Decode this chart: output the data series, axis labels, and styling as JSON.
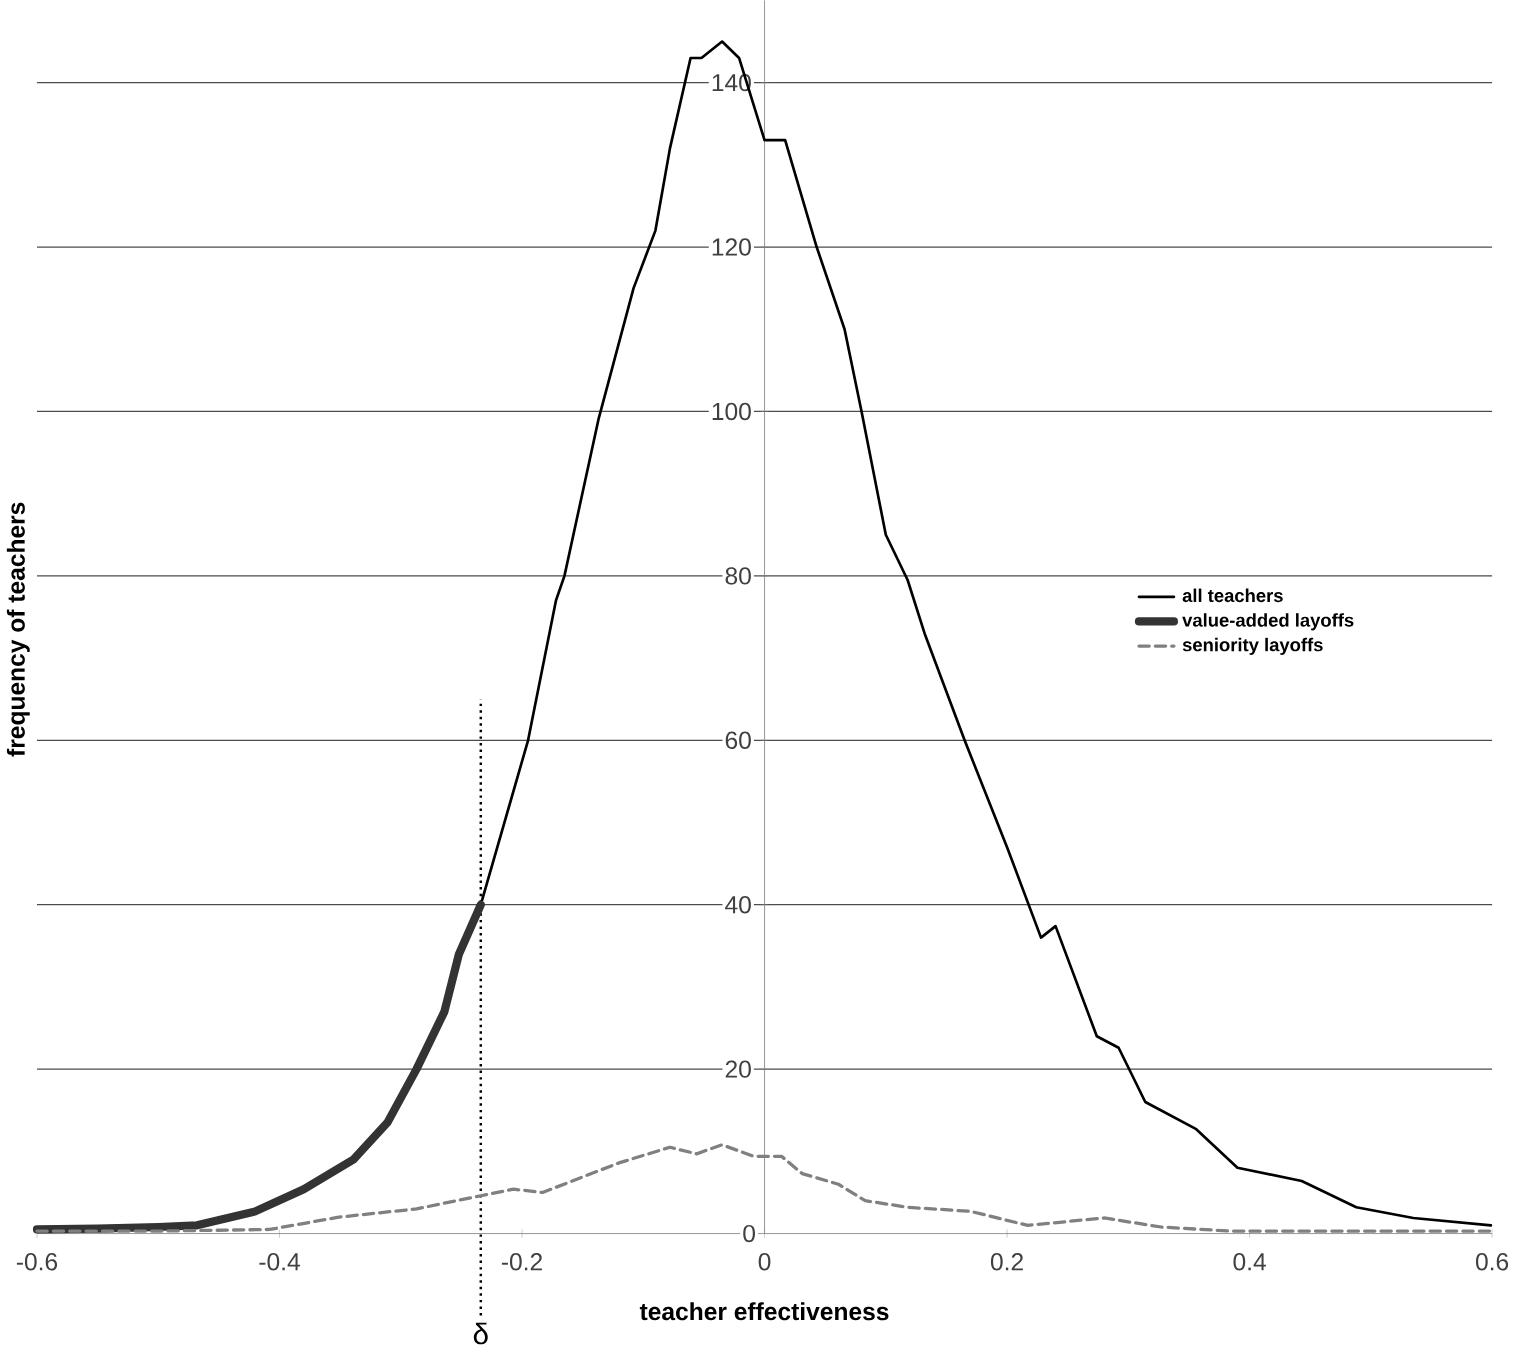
{
  "chart_data": {
    "type": "line",
    "xlabel": "teacher effectiveness",
    "ylabel": "frequency of teachers",
    "xlim": [
      -0.6,
      0.6
    ],
    "ylim": [
      0,
      150
    ],
    "xticks": [
      -0.6,
      -0.4,
      -0.2,
      0,
      0.2,
      0.4,
      0.6
    ],
    "yticks": [
      0,
      20,
      40,
      60,
      80,
      100,
      120,
      140
    ],
    "grid": "y",
    "legend": "right",
    "ref_lines": [
      {
        "axis": "x",
        "value": -0.234,
        "label": "δ",
        "line_style": "dotted",
        "color": "#000000"
      }
    ],
    "series": [
      {
        "name": "all teachers",
        "color": "#000000",
        "line_style": "solid",
        "x": [
          -0.6,
          -0.55,
          -0.5,
          -0.468,
          -0.42,
          -0.38,
          -0.339,
          -0.311,
          -0.287,
          -0.264,
          -0.252,
          -0.234,
          -0.195,
          -0.172,
          -0.165,
          -0.137,
          -0.108,
          -0.09,
          -0.078,
          -0.061,
          -0.052,
          -0.035,
          -0.021,
          0,
          0.017,
          0.043,
          0.066,
          0.08,
          0.1,
          0.118,
          0.132,
          0.165,
          0.2,
          0.228,
          0.24,
          0.274,
          0.292,
          0.314,
          0.356,
          0.39,
          0.443,
          0.488,
          0.535,
          0.599
        ],
        "values": [
          0.5,
          0.6,
          0.8,
          1,
          2.7,
          5.4,
          9,
          13.5,
          20,
          27,
          34,
          40,
          60,
          77,
          80,
          99,
          115,
          122,
          132,
          143,
          143,
          145,
          143,
          133,
          133,
          120,
          110,
          100,
          85,
          79.5,
          73,
          60,
          47,
          36,
          37.4,
          24,
          22.6,
          16,
          12.7,
          8,
          6.4,
          3.2,
          1.9,
          1
        ]
      },
      {
        "name": "value-added layoffs",
        "color": "#333333",
        "line_style": "solid",
        "x": [
          -0.6,
          -0.55,
          -0.5,
          -0.468,
          -0.42,
          -0.38,
          -0.339,
          -0.311,
          -0.287,
          -0.264,
          -0.252,
          -0.234
        ],
        "values": [
          0.5,
          0.6,
          0.8,
          1,
          2.7,
          5.4,
          9,
          13.5,
          20,
          27,
          34,
          40
        ]
      },
      {
        "name": "seniority layoffs",
        "color": "#808080",
        "line_style": "dashed",
        "x": [
          -0.6,
          -0.5,
          -0.408,
          -0.351,
          -0.287,
          -0.234,
          -0.207,
          -0.183,
          -0.12,
          -0.078,
          -0.056,
          -0.035,
          -0.009,
          0.014,
          0.031,
          0.061,
          0.083,
          0.118,
          0.17,
          0.217,
          0.28,
          0.327,
          0.384,
          0.5,
          0.6
        ],
        "values": [
          0.3,
          0.3,
          0.5,
          2,
          3,
          4.6,
          5.4,
          5,
          8.6,
          10.5,
          9.7,
          10.8,
          9.4,
          9.4,
          7.3,
          6,
          4,
          3.2,
          2.7,
          1,
          1.9,
          0.8,
          0.3,
          0.3,
          0.3
        ]
      }
    ]
  }
}
